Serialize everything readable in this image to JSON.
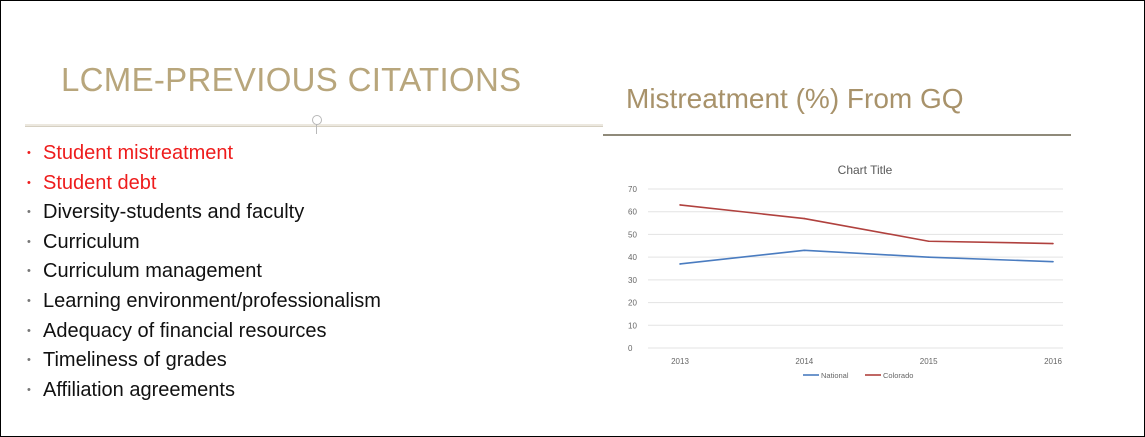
{
  "slide": {
    "left_title": "LCME-PREVIOUS CITATIONS",
    "right_title": "Mistreatment (%) From GQ",
    "bullets": [
      {
        "text": "Student mistreatment",
        "highlight": true
      },
      {
        "text": "Student debt",
        "highlight": true
      },
      {
        "text": "Diversity-students and faculty",
        "highlight": false
      },
      {
        "text": "Curriculum",
        "highlight": false
      },
      {
        "text": "Curriculum management",
        "highlight": false
      },
      {
        "text": "Learning environment/professionalism",
        "highlight": false
      },
      {
        "text": "Adequacy of financial resources",
        "highlight": false
      },
      {
        "text": "Timeliness of grades",
        "highlight": false
      },
      {
        "text": "Affiliation agreements",
        "highlight": false
      }
    ],
    "colors": {
      "title_gold": "#b8a67c",
      "highlight_red": "#ee1c1c",
      "national_blue": "#4a7cc0",
      "colorado_red": "#b0413e"
    }
  },
  "chart_data": {
    "type": "line",
    "title": "Chart Title",
    "xlabel": "",
    "ylabel": "",
    "categories": [
      "2013",
      "2014",
      "2015",
      "2016"
    ],
    "series": [
      {
        "name": "National",
        "values": [
          37,
          43,
          40,
          38
        ],
        "color": "#4a7cc0"
      },
      {
        "name": "Colorado",
        "values": [
          63,
          57,
          47,
          46
        ],
        "color": "#b0413e"
      }
    ],
    "ylim": [
      0,
      70
    ],
    "yticks": [
      0,
      10,
      20,
      30,
      40,
      50,
      60,
      70
    ],
    "grid": true,
    "legend_position": "bottom"
  }
}
